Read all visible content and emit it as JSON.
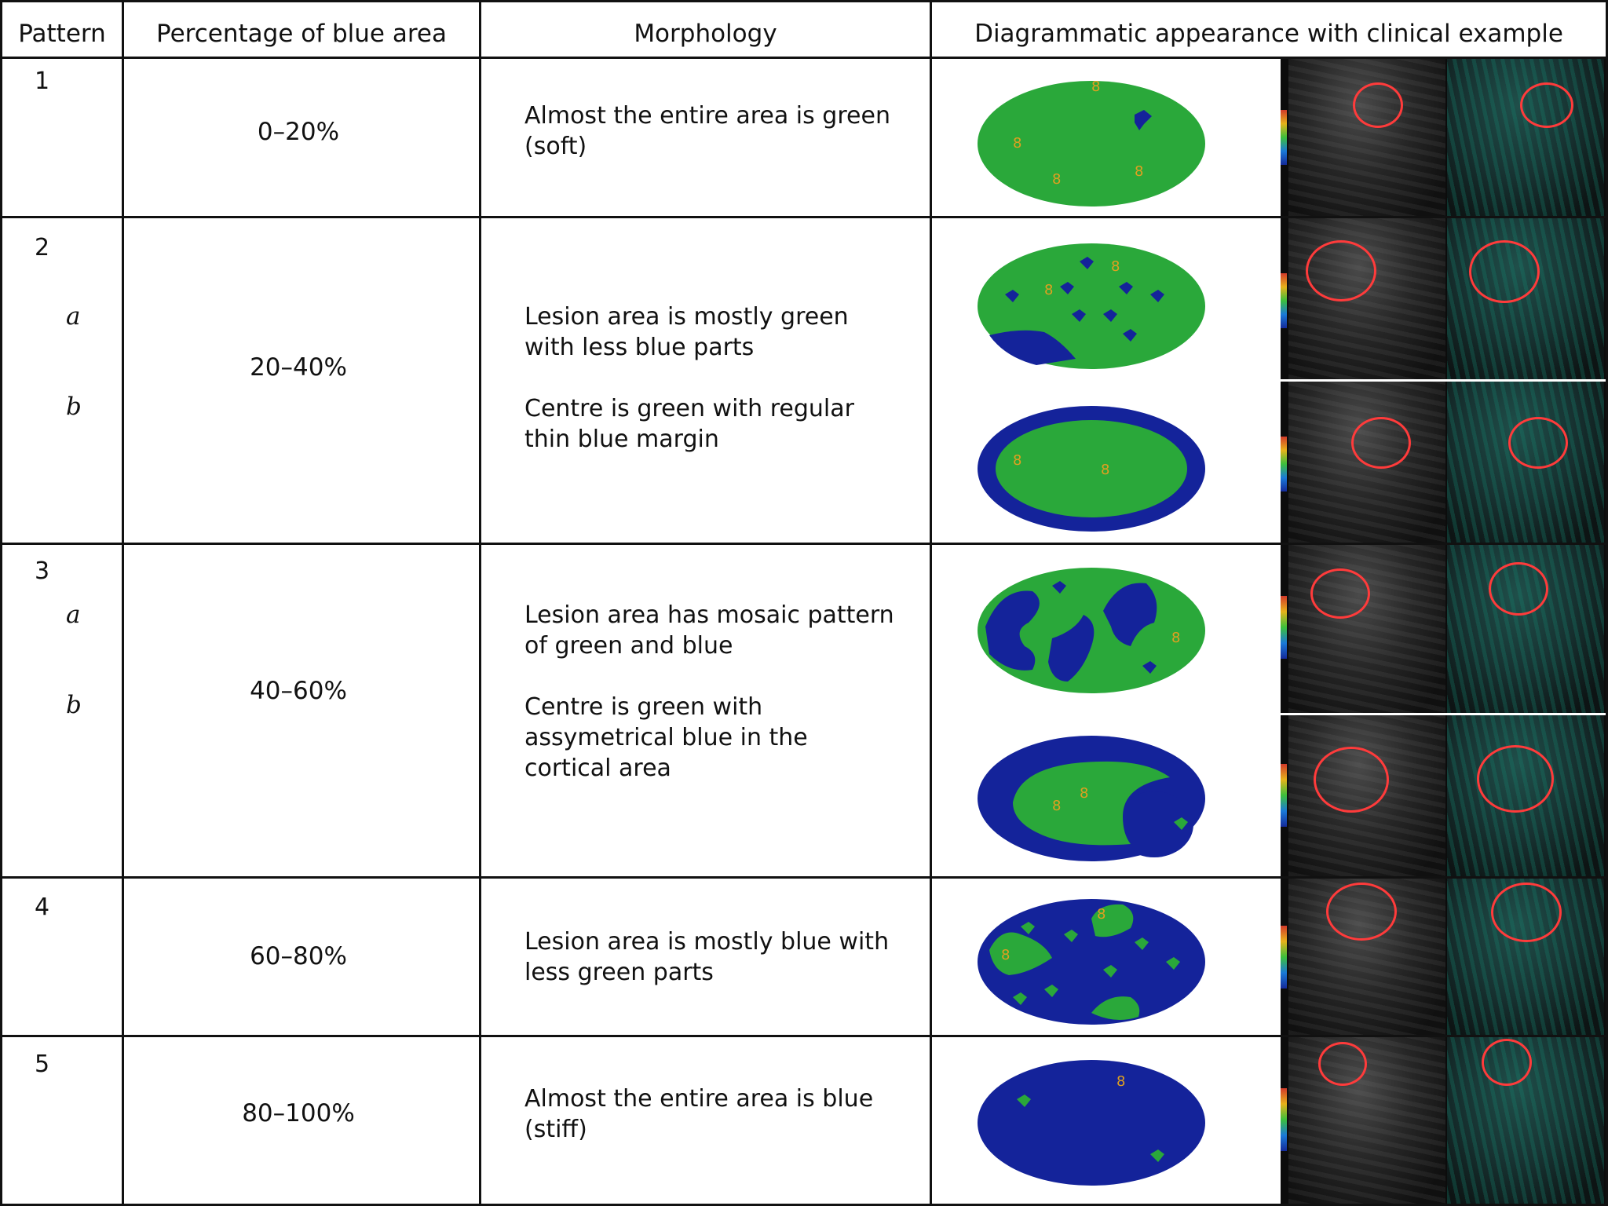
{
  "headers": {
    "pattern": "Pattern",
    "percentage": "Percentage of blue area",
    "morphology": "Morphology",
    "diagram": "Diagrammatic appearance with clinical example"
  },
  "colors": {
    "grid": "#111111",
    "green": "#2aa83a",
    "blue": "#14239a",
    "marker": "#e0a020",
    "circle": "#ff3b3b"
  },
  "rows": [
    {
      "pattern": "1",
      "percentage": "0–20%",
      "morphology": "Almost the entire area is green (soft)",
      "diagrams": [
        {
          "dominant": "green",
          "blue_fraction": 0.05
        }
      ]
    },
    {
      "pattern": "2",
      "percentage": "20–40%",
      "subpatterns": [
        {
          "label": "a",
          "morphology": "Lesion area is mostly green with less blue parts",
          "diagram": {
            "dominant": "green",
            "blue_fraction": 0.25
          }
        },
        {
          "label": "b",
          "morphology": "Centre is green with regular thin blue margin",
          "diagram": {
            "dominant": "green",
            "blue_fraction": 0.35
          }
        }
      ]
    },
    {
      "pattern": "3",
      "percentage": "40–60%",
      "subpatterns": [
        {
          "label": "a",
          "morphology": "Lesion area has mosaic pattern of green and blue",
          "diagram": {
            "dominant": "mixed",
            "blue_fraction": 0.45
          }
        },
        {
          "label": "b",
          "morphology": "Centre is green with assymetrical blue in the cortical area",
          "diagram": {
            "dominant": "mixed",
            "blue_fraction": 0.55
          }
        }
      ]
    },
    {
      "pattern": "4",
      "percentage": "60–80%",
      "morphology": "Lesion area is mostly blue with less green parts",
      "diagrams": [
        {
          "dominant": "blue",
          "blue_fraction": 0.7
        }
      ]
    },
    {
      "pattern": "5",
      "percentage": "80–100%",
      "morphology": "Almost the entire area is blue (stiff)",
      "diagrams": [
        {
          "dominant": "blue",
          "blue_fraction": 0.95
        }
      ]
    }
  ]
}
